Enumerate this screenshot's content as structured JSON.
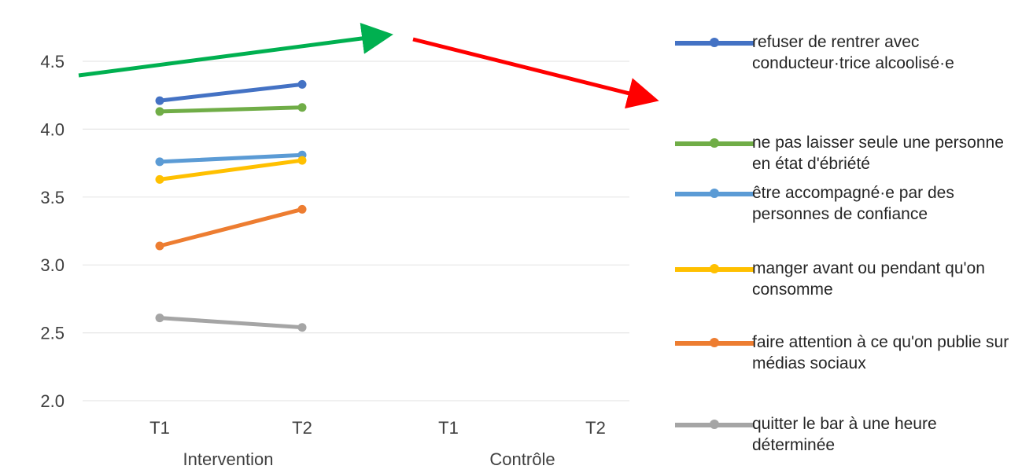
{
  "chart_data": {
    "type": "line",
    "title": "",
    "xlabel": "",
    "ylabel": "",
    "ylim": [
      2.0,
      4.5
    ],
    "yticks": [
      "2.0",
      "2.5",
      "3.0",
      "3.5",
      "4.0",
      "4.5"
    ],
    "groups": [
      {
        "name": "Intervention",
        "categories": [
          "T1",
          "T2"
        ]
      },
      {
        "name": "Contrôle",
        "categories": [
          "T1",
          "T2"
        ]
      }
    ],
    "grid": true,
    "legend_position": "right",
    "series": [
      {
        "name": "refuser de rentrer avec conducteur·trice alcoolisé·e",
        "color": "#4472c4",
        "values": [
          4.21,
          4.33
        ]
      },
      {
        "name": "ne pas laisser seule une personne en état d'ébriété",
        "color": "#70ad47",
        "values": [
          4.13,
          4.16
        ]
      },
      {
        "name": "être accompagné·e par des personnes de confiance",
        "color": "#5b9bd5",
        "values": [
          3.76,
          3.81
        ]
      },
      {
        "name": "manger avant ou pendant qu'on consomme",
        "color": "#ffc000",
        "values": [
          3.63,
          3.77
        ]
      },
      {
        "name": "faire attention à ce qu'on publie sur médias sociaux",
        "color": "#ed7d31",
        "values": [
          3.14,
          3.41
        ]
      },
      {
        "name": "quitter le bar à une heure déterminée",
        "color": "#a5a5a5",
        "values": [
          2.61,
          2.54
        ]
      }
    ],
    "arrows": [
      {
        "color": "#00b050",
        "direction": "up"
      },
      {
        "color": "#ff0000",
        "direction": "down"
      }
    ]
  }
}
